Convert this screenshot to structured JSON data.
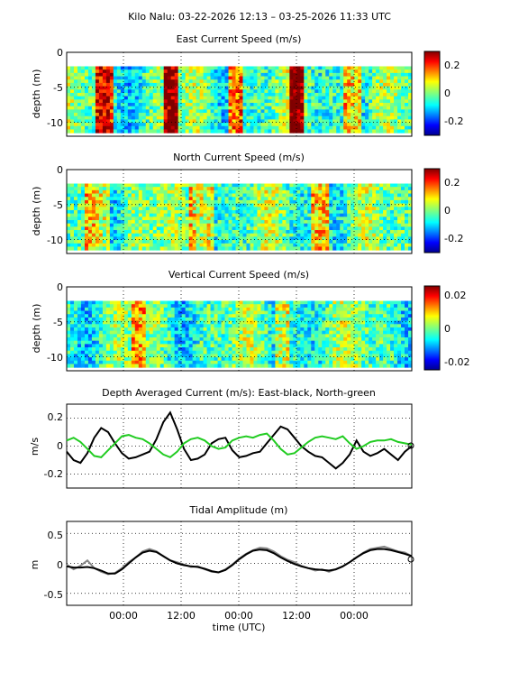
{
  "figure": {
    "title": "Kilo Nalu: 03-22-2026 12:13 – 03-25-2026 11:33 UTC",
    "time_ticks": [
      "00:00",
      "12:00",
      "00:00",
      "12:00",
      "00:00"
    ],
    "xlabel": "time (UTC)"
  },
  "chart_data": [
    {
      "type": "heatmap",
      "title": "East Current Speed (m/s)",
      "ylabel": "depth (m)",
      "yticks": [
        "0",
        "-5",
        "-10"
      ],
      "ylim": [
        -12,
        0
      ],
      "clim": [
        -0.3,
        0.3
      ],
      "colorbar_ticks": [
        "0.2",
        "0",
        "-0.2"
      ],
      "colorbar_values": [
        0.2,
        0,
        -0.2
      ],
      "colormap": "jet",
      "depth_range": [
        -11.5,
        -2
      ]
    },
    {
      "type": "heatmap",
      "title": "North Current Speed (m/s)",
      "ylabel": "depth (m)",
      "yticks": [
        "0",
        "-5",
        "-10"
      ],
      "ylim": [
        -12,
        0
      ],
      "clim": [
        -0.3,
        0.3
      ],
      "colorbar_ticks": [
        "0.2",
        "0",
        "-0.2"
      ],
      "colorbar_values": [
        0.2,
        0,
        -0.2
      ],
      "colormap": "jet",
      "depth_range": [
        -11.5,
        -2
      ]
    },
    {
      "type": "heatmap",
      "title": "Vertical Current Speed (m/s)",
      "ylabel": "depth (m)",
      "yticks": [
        "0",
        "-5",
        "-10"
      ],
      "ylim": [
        -12,
        0
      ],
      "clim": [
        -0.03,
        0.03
      ],
      "colorbar_ticks": [
        "0.02",
        "0",
        "-0.02"
      ],
      "colorbar_values": [
        0.02,
        0,
        -0.02
      ],
      "colormap": "jet",
      "depth_range": [
        -11.5,
        -2
      ]
    },
    {
      "type": "line",
      "title": "Depth Averaged Current (m/s): East-black, North-green",
      "ylabel": "m/s",
      "yticks": [
        "0.2",
        "0",
        "-0.2"
      ],
      "ytick_values": [
        0.2,
        0,
        -0.2
      ],
      "ylim": [
        -0.3,
        0.3
      ],
      "xlim": [
        0,
        1.0
      ],
      "series": [
        {
          "color": "#000000",
          "x": [
            0.0,
            0.02,
            0.04,
            0.06,
            0.08,
            0.1,
            0.12,
            0.14,
            0.16,
            0.18,
            0.2,
            0.22,
            0.24,
            0.26,
            0.28,
            0.3,
            0.32,
            0.34,
            0.36,
            0.38,
            0.4,
            0.42,
            0.44,
            0.46,
            0.48,
            0.5,
            0.52,
            0.54,
            0.56,
            0.58,
            0.6,
            0.62,
            0.64,
            0.66,
            0.68,
            0.7,
            0.72,
            0.74,
            0.76,
            0.78,
            0.8,
            0.82,
            0.84,
            0.86,
            0.88,
            0.9,
            0.92,
            0.94,
            0.96,
            0.98,
            1.0
          ],
          "y": [
            -0.04,
            -0.1,
            -0.12,
            -0.05,
            0.06,
            0.13,
            0.1,
            0.02,
            -0.05,
            -0.09,
            -0.08,
            -0.06,
            -0.04,
            0.05,
            0.17,
            0.24,
            0.12,
            -0.02,
            -0.1,
            -0.09,
            -0.06,
            0.02,
            0.05,
            0.06,
            -0.03,
            -0.08,
            -0.07,
            -0.05,
            -0.04,
            0.02,
            0.08,
            0.14,
            0.12,
            0.06,
            0.0,
            -0.04,
            -0.07,
            -0.08,
            -0.12,
            -0.16,
            -0.12,
            -0.06,
            0.04,
            -0.04,
            -0.07,
            -0.05,
            -0.02,
            -0.06,
            -0.1,
            -0.04,
            0.0
          ]
        },
        {
          "color": "#22cc22",
          "x": [
            0.0,
            0.02,
            0.04,
            0.06,
            0.08,
            0.1,
            0.12,
            0.14,
            0.16,
            0.18,
            0.2,
            0.22,
            0.24,
            0.26,
            0.28,
            0.3,
            0.32,
            0.34,
            0.36,
            0.38,
            0.4,
            0.42,
            0.44,
            0.46,
            0.48,
            0.5,
            0.52,
            0.54,
            0.56,
            0.58,
            0.6,
            0.62,
            0.64,
            0.66,
            0.68,
            0.7,
            0.72,
            0.74,
            0.76,
            0.78,
            0.8,
            0.82,
            0.84,
            0.86,
            0.88,
            0.9,
            0.92,
            0.94,
            0.96,
            0.98,
            1.0
          ],
          "y": [
            0.04,
            0.06,
            0.03,
            -0.02,
            -0.07,
            -0.08,
            -0.03,
            0.02,
            0.07,
            0.08,
            0.06,
            0.05,
            0.02,
            -0.02,
            -0.06,
            -0.08,
            -0.04,
            0.02,
            0.05,
            0.06,
            0.04,
            0.0,
            -0.02,
            -0.01,
            0.04,
            0.06,
            0.07,
            0.06,
            0.08,
            0.09,
            0.04,
            -0.02,
            -0.06,
            -0.05,
            -0.01,
            0.03,
            0.06,
            0.07,
            0.06,
            0.05,
            0.07,
            0.02,
            -0.02,
            0.0,
            0.03,
            0.04,
            0.04,
            0.05,
            0.03,
            0.02,
            0.01
          ]
        }
      ]
    },
    {
      "type": "line",
      "title": "Tidal Amplitude (m)",
      "ylabel": "m",
      "yticks": [
        "0.5",
        "0",
        "-0.5"
      ],
      "ytick_values": [
        0.5,
        0,
        -0.5
      ],
      "ylim": [
        -0.7,
        0.7
      ],
      "xlim": [
        0,
        1.0
      ],
      "series": [
        {
          "color": "#888888",
          "x": [
            0.0,
            0.02,
            0.04,
            0.06,
            0.08,
            0.1,
            0.12,
            0.14,
            0.16,
            0.18,
            0.2,
            0.22,
            0.24,
            0.26,
            0.28,
            0.3,
            0.32,
            0.34,
            0.36,
            0.38,
            0.4,
            0.42,
            0.44,
            0.46,
            0.48,
            0.5,
            0.52,
            0.54,
            0.56,
            0.58,
            0.6,
            0.62,
            0.64,
            0.66,
            0.68,
            0.7,
            0.72,
            0.74,
            0.76,
            0.78,
            0.8,
            0.82,
            0.84,
            0.86,
            0.88,
            0.9,
            0.92,
            0.94,
            0.96,
            0.98,
            1.0
          ],
          "y": [
            -0.02,
            -0.1,
            -0.04,
            0.05,
            -0.08,
            -0.14,
            -0.18,
            -0.16,
            -0.08,
            0.02,
            0.1,
            0.2,
            0.24,
            0.2,
            0.12,
            0.05,
            0.02,
            -0.02,
            -0.06,
            -0.05,
            -0.1,
            -0.14,
            -0.15,
            -0.1,
            -0.02,
            0.08,
            0.16,
            0.22,
            0.26,
            0.25,
            0.2,
            0.12,
            0.06,
            0.02,
            -0.04,
            -0.08,
            -0.12,
            -0.1,
            -0.14,
            -0.1,
            -0.05,
            0.02,
            0.1,
            0.18,
            0.24,
            0.26,
            0.28,
            0.24,
            0.2,
            0.18,
            0.12
          ]
        },
        {
          "color": "#000000",
          "x": [
            0.0,
            0.02,
            0.04,
            0.06,
            0.08,
            0.1,
            0.12,
            0.14,
            0.16,
            0.18,
            0.2,
            0.22,
            0.24,
            0.26,
            0.28,
            0.3,
            0.32,
            0.34,
            0.36,
            0.38,
            0.4,
            0.42,
            0.44,
            0.46,
            0.48,
            0.5,
            0.52,
            0.54,
            0.56,
            0.58,
            0.6,
            0.62,
            0.64,
            0.66,
            0.68,
            0.7,
            0.72,
            0.74,
            0.76,
            0.78,
            0.8,
            0.82,
            0.84,
            0.86,
            0.88,
            0.9,
            0.92,
            0.94,
            0.96,
            0.98,
            1.0
          ],
          "y": [
            -0.05,
            -0.07,
            -0.07,
            -0.06,
            -0.08,
            -0.12,
            -0.17,
            -0.17,
            -0.1,
            0.0,
            0.1,
            0.18,
            0.21,
            0.19,
            0.12,
            0.05,
            0.0,
            -0.03,
            -0.05,
            -0.06,
            -0.09,
            -0.13,
            -0.15,
            -0.11,
            -0.03,
            0.07,
            0.15,
            0.21,
            0.23,
            0.22,
            0.17,
            0.1,
            0.04,
            -0.01,
            -0.05,
            -0.08,
            -0.1,
            -0.11,
            -0.12,
            -0.1,
            -0.05,
            0.02,
            0.1,
            0.17,
            0.22,
            0.24,
            0.24,
            0.22,
            0.19,
            0.16,
            0.12
          ]
        }
      ]
    }
  ]
}
